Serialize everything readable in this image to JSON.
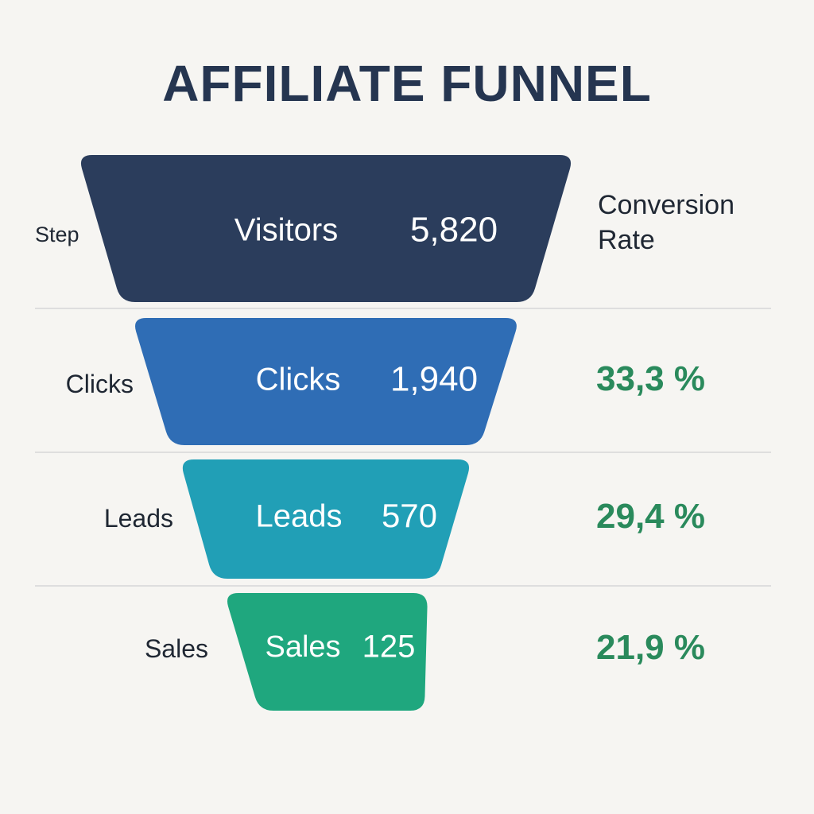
{
  "chart_data": {
    "type": "funnel",
    "title": "AFFILIATE FUNNEL",
    "column_headers": {
      "step": "Step",
      "conversion_rate_line1": "Conversion",
      "conversion_rate_line2": "Rate"
    },
    "stages": [
      {
        "name": "Visitors",
        "side_label": "",
        "value": 5820,
        "value_label": "5,820",
        "conversion_rate": "",
        "color": "#2b3d5c"
      },
      {
        "name": "Clicks",
        "side_label": "Clicks",
        "value": 1940,
        "value_label": "1,940",
        "conversion_rate": "33,3 %",
        "color": "#2f6db5"
      },
      {
        "name": "Leads",
        "side_label": "Leads",
        "value": 570,
        "value_label": "570",
        "conversion_rate": "29,4 %",
        "color": "#219fb6"
      },
      {
        "name": "Sales",
        "side_label": "Sales",
        "value": 125,
        "value_label": "125",
        "conversion_rate": "21,9 %",
        "color": "#1fa77e"
      }
    ],
    "divider_color": "#dedede",
    "text_color_on_bar": "#ffffff",
    "rate_color": "#2a8a5c"
  }
}
